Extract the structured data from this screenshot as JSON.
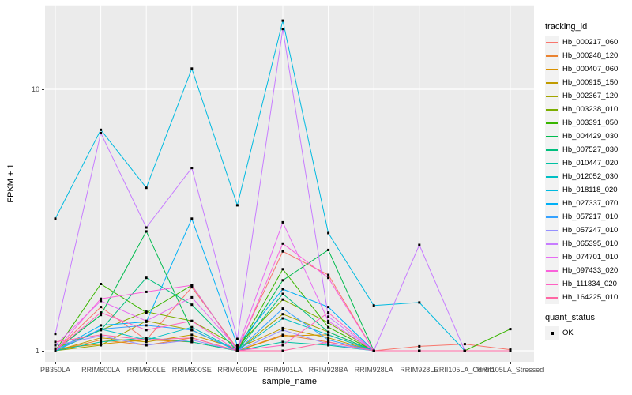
{
  "figure": {
    "x_axis_title": "sample_name",
    "y_axis_title": "FPKM + 1",
    "tracking_legend_title": "tracking_id",
    "quant_legend_title": "quant_status",
    "quant_ok_label": "OK"
  },
  "colors": {
    "panel_bg": "#EBEBEB",
    "grid": "#FFFFFF",
    "tick_label": "#4D4D4D",
    "axis_title": "#000000",
    "legend_key_bg": "#F2F2F2",
    "marker": "#000000"
  },
  "chart_data": {
    "type": "line",
    "title": "",
    "xlabel": "sample_name",
    "ylabel": "FPKM + 1",
    "y_scale": "log10",
    "ylim": [
      0.93,
      21
    ],
    "y_ticks": [
      {
        "label": "10",
        "value": 10
      },
      {
        "label": "1",
        "value": 1
      }
    ],
    "y_minor_ticks": [
      3.162,
      21.0
    ],
    "grid": true,
    "legend_position": "right",
    "point_marker": "filled-black-square",
    "quant_status_legend": {
      "title": "quant_status",
      "entries": [
        {
          "label": "OK",
          "marker": "filled-black-square"
        }
      ]
    },
    "categories": [
      "PB350LA",
      "RRIM600LA",
      "RRIM600LE",
      "RRIM600SE",
      "RRIM600PE",
      "RRIM901LA",
      "RRIM928BA",
      "RRIM928LA",
      "RRIM928LE",
      "RRII105LA_Control",
      "RRII105LA_Stressed"
    ],
    "series": [
      {
        "name": "Hb_000217_060",
        "color": "#F8766D",
        "values": [
          1.0,
          1.47,
          1.1,
          1.75,
          1.02,
          2.4,
          1.95,
          1.0,
          1.04,
          1.06,
          1.01
        ]
      },
      {
        "name": "Hb_000248_120",
        "color": "#EA8331",
        "values": [
          1.0,
          1.1,
          1.05,
          1.12,
          1.0,
          1.15,
          1.08,
          1.0,
          1.0,
          1.0,
          1.0
        ]
      },
      {
        "name": "Hb_000407_060",
        "color": "#D89000",
        "values": [
          1.02,
          1.06,
          1.1,
          1.08,
          1.0,
          1.14,
          1.15,
          1.0,
          1.0,
          1.0,
          1.0
        ]
      },
      {
        "name": "Hb_000915_150",
        "color": "#C09B00",
        "values": [
          1.0,
          1.12,
          1.08,
          1.15,
          1.02,
          1.22,
          1.12,
          1.0,
          1.0,
          1.0,
          1.0
        ]
      },
      {
        "name": "Hb_002367_120",
        "color": "#A3A500",
        "values": [
          1.0,
          1.05,
          1.3,
          1.2,
          1.0,
          1.38,
          1.18,
          1.0,
          1.0,
          1.0,
          1.0
        ]
      },
      {
        "name": "Hb_003238_010",
        "color": "#7CAE00",
        "values": [
          1.02,
          1.2,
          1.41,
          1.3,
          1.04,
          1.57,
          1.28,
          1.0,
          1.0,
          1.0,
          1.0
        ]
      },
      {
        "name": "Hb_003391_050",
        "color": "#39B600",
        "values": [
          1.0,
          1.8,
          1.4,
          1.78,
          1.0,
          2.05,
          1.23,
          1.0,
          1.0,
          1.0,
          1.21
        ]
      },
      {
        "name": "Hb_004429_030",
        "color": "#00BB4E",
        "values": [
          1.0,
          1.37,
          2.86,
          1.2,
          1.0,
          1.86,
          2.43,
          1.0,
          1.0,
          1.0,
          1.0
        ]
      },
      {
        "name": "Hb_007527_030",
        "color": "#00BF7D",
        "values": [
          1.0,
          1.2,
          1.9,
          1.5,
          1.0,
          1.65,
          1.18,
          1.0,
          1.0,
          1.0,
          1.0
        ]
      },
      {
        "name": "Hb_010447_020",
        "color": "#00C1A3",
        "values": [
          1.0,
          1.08,
          1.12,
          1.08,
          1.0,
          1.08,
          1.05,
          1.0,
          1.0,
          1.0,
          1.0
        ]
      },
      {
        "name": "Hb_012052_030",
        "color": "#00BFC4",
        "values": [
          1.0,
          1.21,
          1.1,
          1.23,
          1.0,
          1.33,
          1.15,
          1.0,
          1.0,
          1.0,
          1.0
        ]
      },
      {
        "name": "Hb_018118_020",
        "color": "#00BAE0",
        "values": [
          3.2,
          7.0,
          4.2,
          12.0,
          3.6,
          18.3,
          2.82,
          1.49,
          1.53,
          1.0,
          1.0
        ]
      },
      {
        "name": "Hb_027337_070",
        "color": "#00B0F6",
        "values": [
          1.0,
          1.25,
          1.29,
          3.2,
          1.05,
          1.72,
          1.47,
          1.0,
          1.0,
          1.0,
          1.0
        ]
      },
      {
        "name": "Hb_057217_010",
        "color": "#35A2FF",
        "values": [
          1.0,
          1.21,
          1.25,
          1.2,
          1.0,
          1.45,
          1.1,
          1.0,
          1.0,
          1.0,
          1.0
        ]
      },
      {
        "name": "Hb_057247_010",
        "color": "#9590FF",
        "values": [
          1.05,
          1.14,
          1.05,
          1.1,
          1.0,
          1.2,
          1.06,
          1.0,
          1.0,
          1.0,
          1.0
        ]
      },
      {
        "name": "Hb_065395_010",
        "color": "#C77CFF",
        "values": [
          1.16,
          6.8,
          2.96,
          5.0,
          1.11,
          17.0,
          1.35,
          1.0,
          2.54,
          1.0,
          1.0
        ]
      },
      {
        "name": "Hb_074701_010",
        "color": "#E76BF3",
        "values": [
          1.05,
          1.55,
          1.3,
          1.6,
          1.02,
          3.1,
          1.3,
          1.0,
          1.0,
          1.0,
          1.0
        ]
      },
      {
        "name": "Hb_097433_020",
        "color": "#FA62DB",
        "values": [
          1.0,
          1.58,
          1.68,
          1.78,
          1.0,
          2.57,
          1.9,
          1.0,
          1.0,
          1.0,
          1.0
        ]
      },
      {
        "name": "Hb_111834_020",
        "color": "#FF61C3",
        "values": [
          1.0,
          1.4,
          1.2,
          1.3,
          1.0,
          1.05,
          1.4,
          1.0,
          1.0,
          1.0,
          1.0
        ]
      },
      {
        "name": "Hb_164225_010",
        "color": "#FF67A4",
        "values": [
          1.08,
          1.15,
          1.1,
          1.12,
          1.0,
          1.0,
          1.08,
          1.0,
          1.0,
          1.0,
          1.0
        ]
      }
    ]
  }
}
